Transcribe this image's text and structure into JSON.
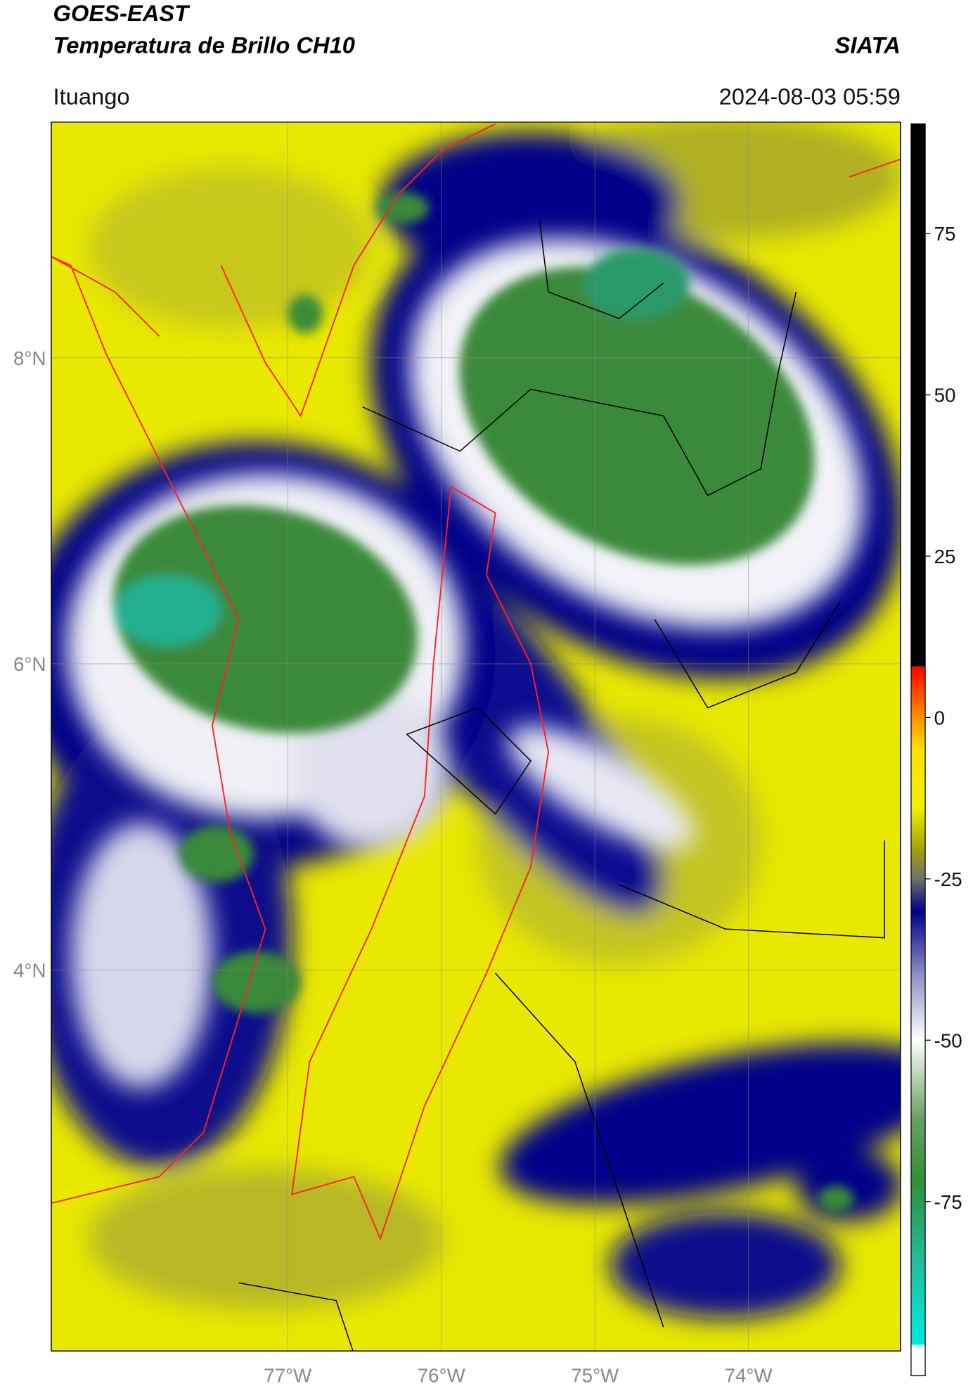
{
  "header": {
    "title": "GOES-EAST",
    "subtitle": "Temperatura de Brillo CH10",
    "agency": "SIATA",
    "location": "Ituango",
    "datetime": "2024-08-03 05:59"
  },
  "map": {
    "lon_range": [
      -78.54,
      -73.01
    ],
    "lat_range": [
      1.51,
      9.54
    ],
    "lon_ticks": [
      {
        "value": -77,
        "label": "77°W"
      },
      {
        "value": -76,
        "label": "76°W"
      },
      {
        "value": -75,
        "label": "75°W"
      },
      {
        "value": -74,
        "label": "74°W"
      }
    ],
    "lat_ticks": [
      {
        "value": 8,
        "label": "8°N"
      },
      {
        "value": 6,
        "label": "6°N"
      },
      {
        "value": 4,
        "label": "4°N"
      }
    ]
  },
  "colorbar": {
    "range": [
      -102,
      92
    ],
    "ticks": [
      75,
      50,
      25,
      0,
      -25,
      -50,
      -75
    ],
    "colormap": [
      {
        "value": -102,
        "color": "#ffffff"
      },
      {
        "value": -97.5,
        "color": "#ffffff"
      },
      {
        "value": -97,
        "color": "#00e8e0"
      },
      {
        "value": -85,
        "color": "#20c0a0"
      },
      {
        "value": -72,
        "color": "#2f8f3a"
      },
      {
        "value": -62,
        "color": "#6aa060"
      },
      {
        "value": -50,
        "color": "#ffffff"
      },
      {
        "value": -40,
        "color": "#9090c8"
      },
      {
        "value": -30,
        "color": "#000088"
      },
      {
        "value": -25,
        "color": "#707070"
      },
      {
        "value": -20,
        "color": "#a6a600"
      },
      {
        "value": -14,
        "color": "#f0f000"
      },
      {
        "value": -5,
        "color": "#ffe000"
      },
      {
        "value": 0,
        "color": "#ff9000"
      },
      {
        "value": 7.9,
        "color": "#ff0000"
      },
      {
        "value": 8,
        "color": "#000000"
      },
      {
        "value": 92,
        "color": "#000000"
      }
    ]
  }
}
